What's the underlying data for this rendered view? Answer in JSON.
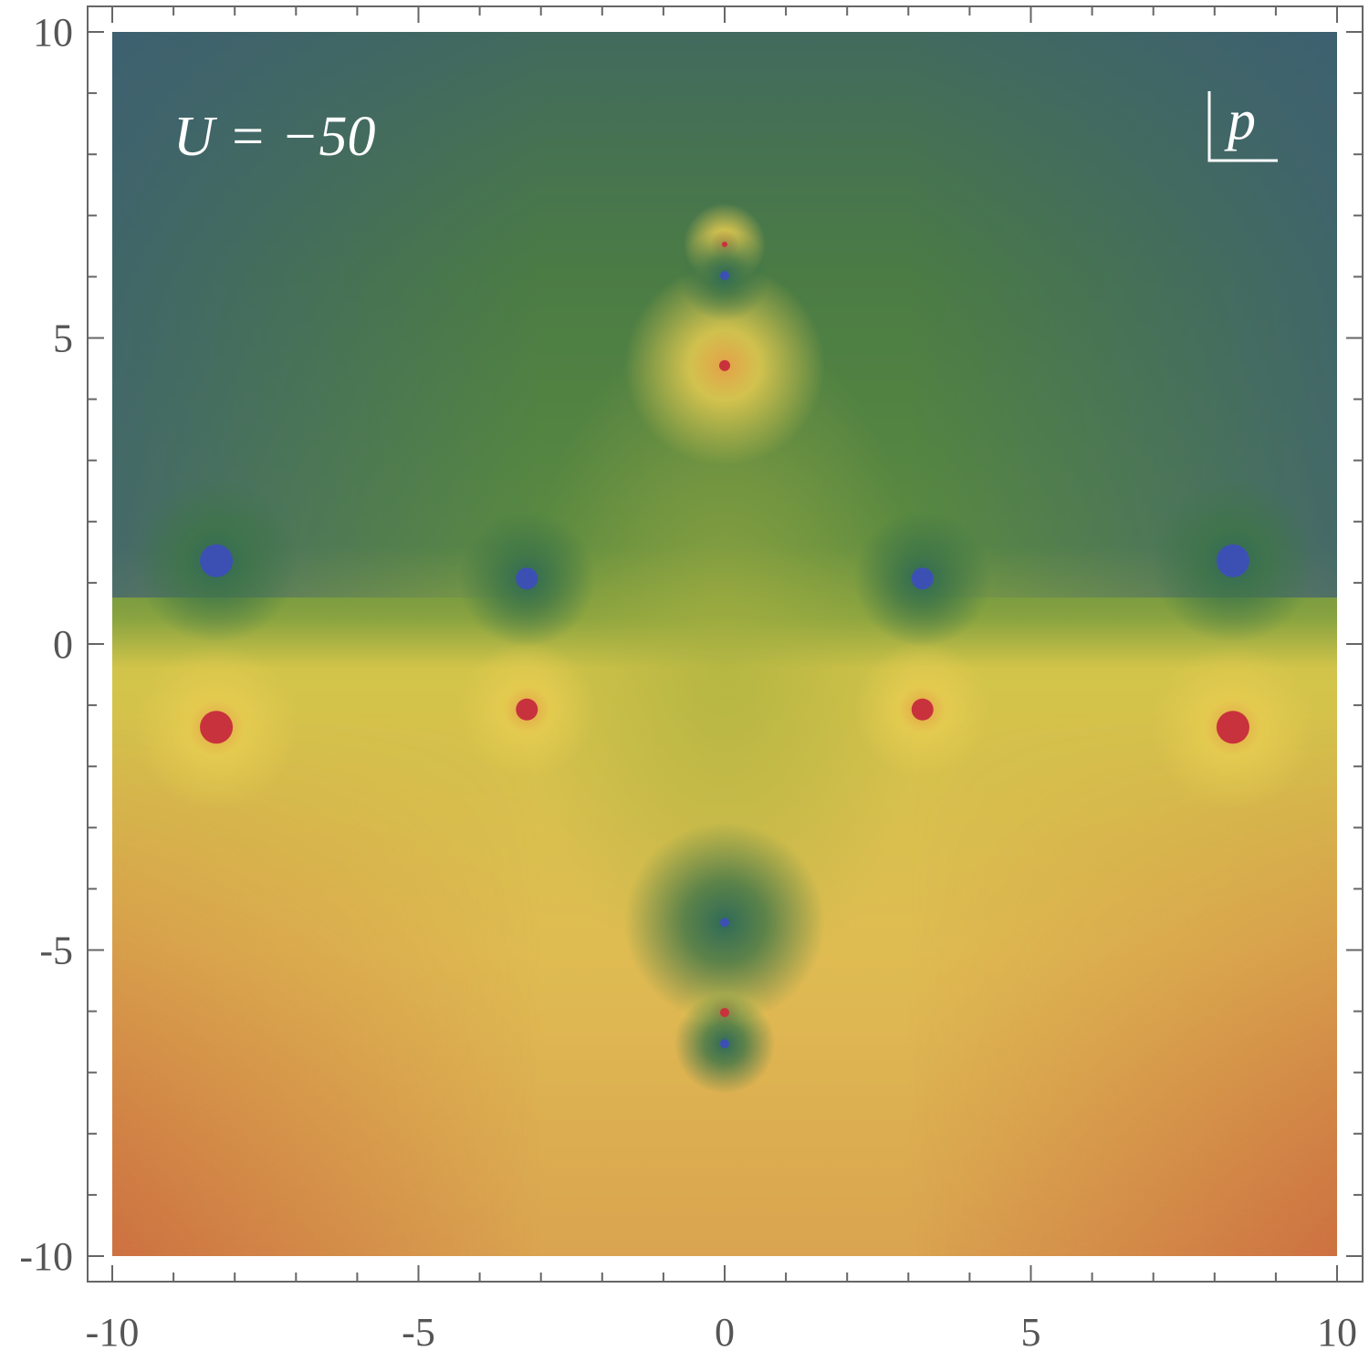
{
  "chart_data": {
    "type": "density",
    "annotations": [
      "U = −50",
      "p"
    ],
    "xlim": [
      -10,
      10
    ],
    "ylim": [
      -10,
      10
    ],
    "xticks": [
      -10,
      -5,
      0,
      5,
      10
    ],
    "yticks": [
      -10,
      -5,
      0,
      5,
      10
    ],
    "xminorticks": [
      -9,
      -8,
      -7,
      -6,
      -4,
      -3,
      -2,
      -1,
      1,
      2,
      3,
      4,
      6,
      7,
      8,
      9
    ],
    "yminorticks": [
      -9,
      -8,
      -7,
      -6,
      -4,
      -3,
      -2,
      -1,
      1,
      2,
      3,
      4,
      6,
      7,
      8,
      9
    ],
    "series": [
      {
        "color": "#c8323c",
        "x": [
          -8.3,
          -3.23,
          3.23,
          8.3,
          0,
          0,
          0
        ],
        "y": [
          -1.36,
          -1.07,
          -1.07,
          -1.36,
          4.55,
          6.53,
          -6.02
        ]
      },
      {
        "color": "#3c50b4",
        "x": [
          -8.3,
          -3.23,
          3.23,
          8.3,
          0,
          0,
          0
        ],
        "y": [
          1.36,
          1.07,
          1.07,
          1.36,
          6.02,
          -4.55,
          -6.53
        ]
      }
    ]
  }
}
